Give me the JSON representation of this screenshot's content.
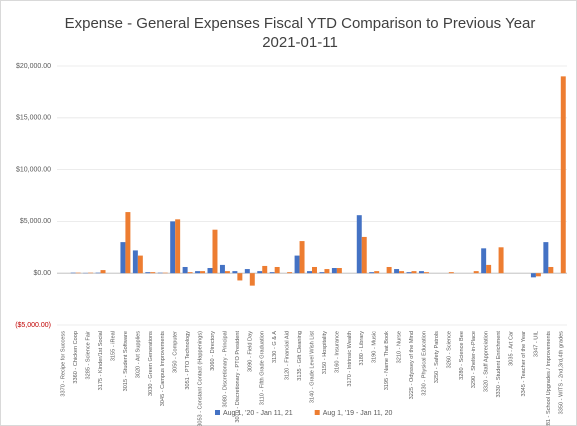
{
  "chart_data": {
    "type": "bar",
    "title": "Expense - General Expenses Fiscal YTD Comparison to Previous Year",
    "subtitle": "2021-01-11",
    "categories": [
      "3370 - Recipe for Success",
      "3360 - Chicken Coop",
      "3285 - Science Fair",
      "3175 - Kinder/1st Social",
      "3155 - iReal",
      "3015 - Student Software",
      "3020 - Art Supplies",
      "3030 - Green Generations",
      "3045 - Campus Improvements",
      "3050 - Computer",
      "3051 - PTO Technology",
      "3053 - Constant Contact (Happenings)",
      "3060 - Directory",
      "3080 - Discretionary - Principal",
      "3070 - Discretionary - PTO President",
      "3090 - Field Day",
      "3110 - Fifth Grade Graduation",
      "3130 - G & A",
      "3120 - Financial Aid",
      "3135 - Gift Cleaning",
      "3140 - Grade Level Wish List",
      "3150 - Hospitality",
      "3160 - Insurance",
      "3170 - Intrinsic Wealth",
      "3180 - Library",
      "3190 - Music",
      "3195 - Name That Book",
      "3210 - Nurse",
      "3225 - Odyssey of the Mind",
      "3230 - Physical Education",
      "3250 - Safety Patrols",
      "3260 - Science",
      "3280 - Science Bee",
      "3290 - Shelter-in-Place",
      "3320 - Staff Appreciation",
      "3330 - Student Enrichment",
      "3035 - Art Car",
      "3345 - Teacher of the Year",
      "3347 - UIL",
      "3281 - School Upgrades / Improvements",
      "3350 - WITS - 2nd,3rd,4th grades"
    ],
    "series": [
      {
        "name": "Aug 1, '20 - Jan 11, 21",
        "color": "#4472c4",
        "values": [
          0,
          50,
          30,
          50,
          0,
          3000,
          2200,
          100,
          50,
          5000,
          600,
          200,
          500,
          800,
          200,
          400,
          200,
          100,
          0,
          1700,
          200,
          100,
          500,
          0,
          5600,
          100,
          0,
          400,
          100,
          200,
          0,
          0,
          0,
          0,
          2400,
          0,
          0,
          0,
          -400,
          3000,
          0
        ]
      },
      {
        "name": "Aug 1, '19 - Jan 11, 20",
        "color": "#ed7d31",
        "values": [
          0,
          50,
          50,
          300,
          0,
          5900,
          1700,
          100,
          50,
          5200,
          100,
          200,
          4200,
          200,
          -700,
          -1200,
          700,
          600,
          100,
          3100,
          600,
          400,
          500,
          0,
          3500,
          200,
          600,
          200,
          200,
          100,
          0,
          100,
          0,
          200,
          800,
          2500,
          0,
          0,
          -300,
          600,
          19000
        ]
      }
    ],
    "ylim": [
      -5000,
      20000
    ],
    "yticks": [
      {
        "value": -5000,
        "label": "($5,000.00)"
      },
      {
        "value": 0,
        "label": "$0.00"
      },
      {
        "value": 5000,
        "label": "$5,000.00"
      },
      {
        "value": 10000,
        "label": "$10,000.00"
      },
      {
        "value": 15000,
        "label": "$15,000.00"
      },
      {
        "value": 20000,
        "label": "$20,000.00"
      }
    ],
    "grid": true,
    "legend": "bottom"
  }
}
